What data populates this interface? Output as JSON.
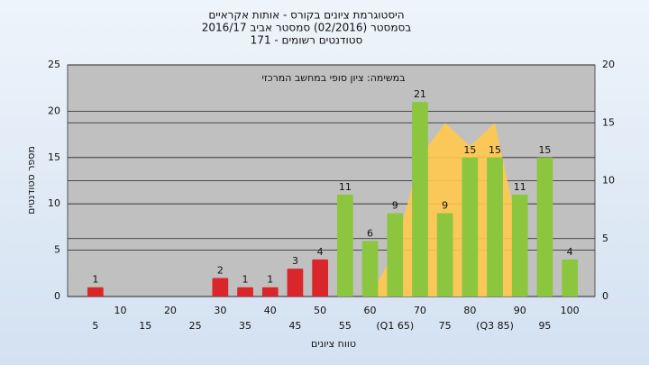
{
  "chart_data": {
    "type": "bar",
    "title": [
      "היסטוגרמת ציונים בקורס - אותות אקראיים",
      "בסמסטר  (02/2016)  סמסטר אביב 2016/17",
      "סטודנטים רשומים - 171"
    ],
    "annotation": "במשימה: ציון סופי במחשב המרכזי",
    "x_label": "טווח ציונים",
    "y_label": "מספר סטודנטים",
    "categories": [
      "5",
      "10",
      "15",
      "20",
      "25",
      "30",
      "35",
      "40",
      "45",
      "50",
      "55",
      "60",
      "(Q1 65)",
      "70",
      "75",
      "80",
      "(Q3 85)",
      "90",
      "95",
      "100"
    ],
    "values": [
      1,
      0,
      0,
      0,
      0,
      2,
      1,
      1,
      3,
      4,
      11,
      6,
      9,
      21,
      9,
      15,
      15,
      11,
      15,
      4
    ],
    "colors": [
      "#d9262b",
      "#d9262b",
      "#d9262b",
      "#d9262b",
      "#d9262b",
      "#d9262b",
      "#d9262b",
      "#d9262b",
      "#d9262b",
      "#d9262b",
      "#8cc63f",
      "#8cc63f",
      "#8cc63f",
      "#8cc63f",
      "#8cc63f",
      "#8cc63f",
      "#8cc63f",
      "#8cc63f",
      "#8cc63f",
      "#8cc63f"
    ],
    "area": {
      "color": "#ffc94d",
      "axis": "y2",
      "values": [
        null,
        null,
        null,
        null,
        null,
        null,
        null,
        null,
        null,
        null,
        null,
        0,
        4,
        12,
        15,
        13,
        15,
        5,
        null,
        null
      ]
    },
    "ylim": [
      0,
      25
    ],
    "yticks": [
      0,
      5,
      10,
      15,
      20,
      25
    ],
    "y2lim": [
      0,
      20
    ],
    "y2ticks": [
      0,
      5,
      10,
      15,
      20
    ],
    "grid": true
  }
}
